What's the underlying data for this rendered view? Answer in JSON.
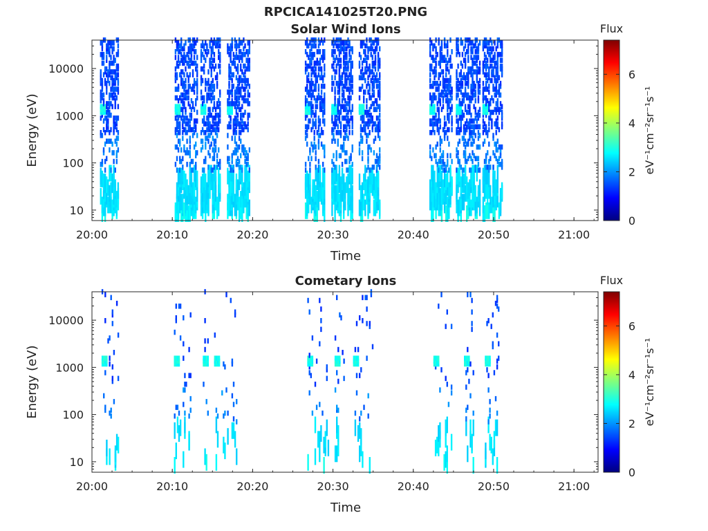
{
  "figure_title": "RPCICA141025T20.PNG",
  "colors": {
    "axis": "#262626",
    "colormap": [
      "#00007f",
      "#0000ff",
      "#007fff",
      "#00ffff",
      "#7fff7f",
      "#ffff00",
      "#ff7f00",
      "#ff0000",
      "#7f0000"
    ]
  },
  "chart_data": [
    {
      "type": "heatmap",
      "title": "Solar Wind Ions",
      "xlabel": "Time",
      "ylabel": "Energy (eV)",
      "x_ticks": [
        "20:00",
        "20:10",
        "20:20",
        "20:30",
        "20:40",
        "20:50",
        "21:00"
      ],
      "x_tick_minutes": [
        0,
        10,
        20,
        30,
        40,
        50,
        60
      ],
      "xlim_minutes": [
        0,
        63
      ],
      "ylim": [
        6,
        40000
      ],
      "yscale": "log",
      "y_ticks": [
        "10",
        "100",
        "1000",
        "10000"
      ],
      "y_tick_values": [
        10,
        100,
        1000,
        10000
      ],
      "colorbar": {
        "label": "Flux",
        "units": "eV⁻¹cm⁻²sr⁻¹s⁻¹",
        "range": [
          0,
          7.4
        ],
        "ticks": [
          "0",
          "2",
          "4",
          "6"
        ],
        "tick_values": [
          0,
          2,
          4,
          6
        ]
      },
      "sweeps": [
        {
          "start": 1.0,
          "end": 3.2,
          "peak": 1.45
        },
        {
          "start": 10.3,
          "end": 13.0,
          "peak": 1.45
        },
        {
          "start": 13.5,
          "end": 16.0,
          "peak": 1.45
        },
        {
          "start": 16.8,
          "end": 19.5,
          "peak": 1.45
        },
        {
          "start": 26.5,
          "end": 29.0,
          "peak": 1.45
        },
        {
          "start": 29.8,
          "end": 32.5,
          "peak": 1.45
        },
        {
          "start": 33.2,
          "end": 35.8,
          "peak": 1.45
        },
        {
          "start": 42.0,
          "end": 44.8,
          "peak": 1.45
        },
        {
          "start": 45.3,
          "end": 48.2,
          "peak": 1.45
        },
        {
          "start": 48.6,
          "end": 51.0,
          "peak": 1.45
        }
      ]
    },
    {
      "type": "heatmap",
      "title": "Cometary Ions",
      "xlabel": "Time",
      "ylabel": "Energy (eV)",
      "x_ticks": [
        "20:00",
        "20:10",
        "20:20",
        "20:30",
        "20:40",
        "20:50",
        "21:00"
      ],
      "x_tick_minutes": [
        0,
        10,
        20,
        30,
        40,
        50,
        60
      ],
      "xlim_minutes": [
        0,
        63
      ],
      "ylim": [
        6,
        40000
      ],
      "yscale": "log",
      "y_ticks": [
        "10",
        "100",
        "1000",
        "10000"
      ],
      "y_tick_values": [
        10,
        100,
        1000,
        10000
      ],
      "colorbar": {
        "label": "Flux",
        "units": "eV⁻¹cm⁻²sr⁻¹s⁻¹",
        "range": [
          0,
          7.4
        ],
        "ticks": [
          "0",
          "2",
          "4",
          "6"
        ],
        "tick_values": [
          0,
          2,
          4,
          6
        ]
      },
      "sweeps": [
        {
          "start": 1.2,
          "end": 3.2,
          "peak": 0.5
        },
        {
          "start": 10.2,
          "end": 12.2,
          "peak": 0.5
        },
        {
          "start": 13.8,
          "end": 14.4,
          "peak": 0.4
        },
        {
          "start": 15.2,
          "end": 18.4,
          "peak": 0.5
        },
        {
          "start": 26.8,
          "end": 29.4,
          "peak": 0.5
        },
        {
          "start": 30.2,
          "end": 31.4,
          "peak": 0.4
        },
        {
          "start": 32.5,
          "end": 35.0,
          "peak": 0.5
        },
        {
          "start": 42.5,
          "end": 44.8,
          "peak": 0.5
        },
        {
          "start": 46.3,
          "end": 47.5,
          "peak": 0.4
        },
        {
          "start": 48.9,
          "end": 50.6,
          "peak": 0.5
        }
      ]
    }
  ]
}
